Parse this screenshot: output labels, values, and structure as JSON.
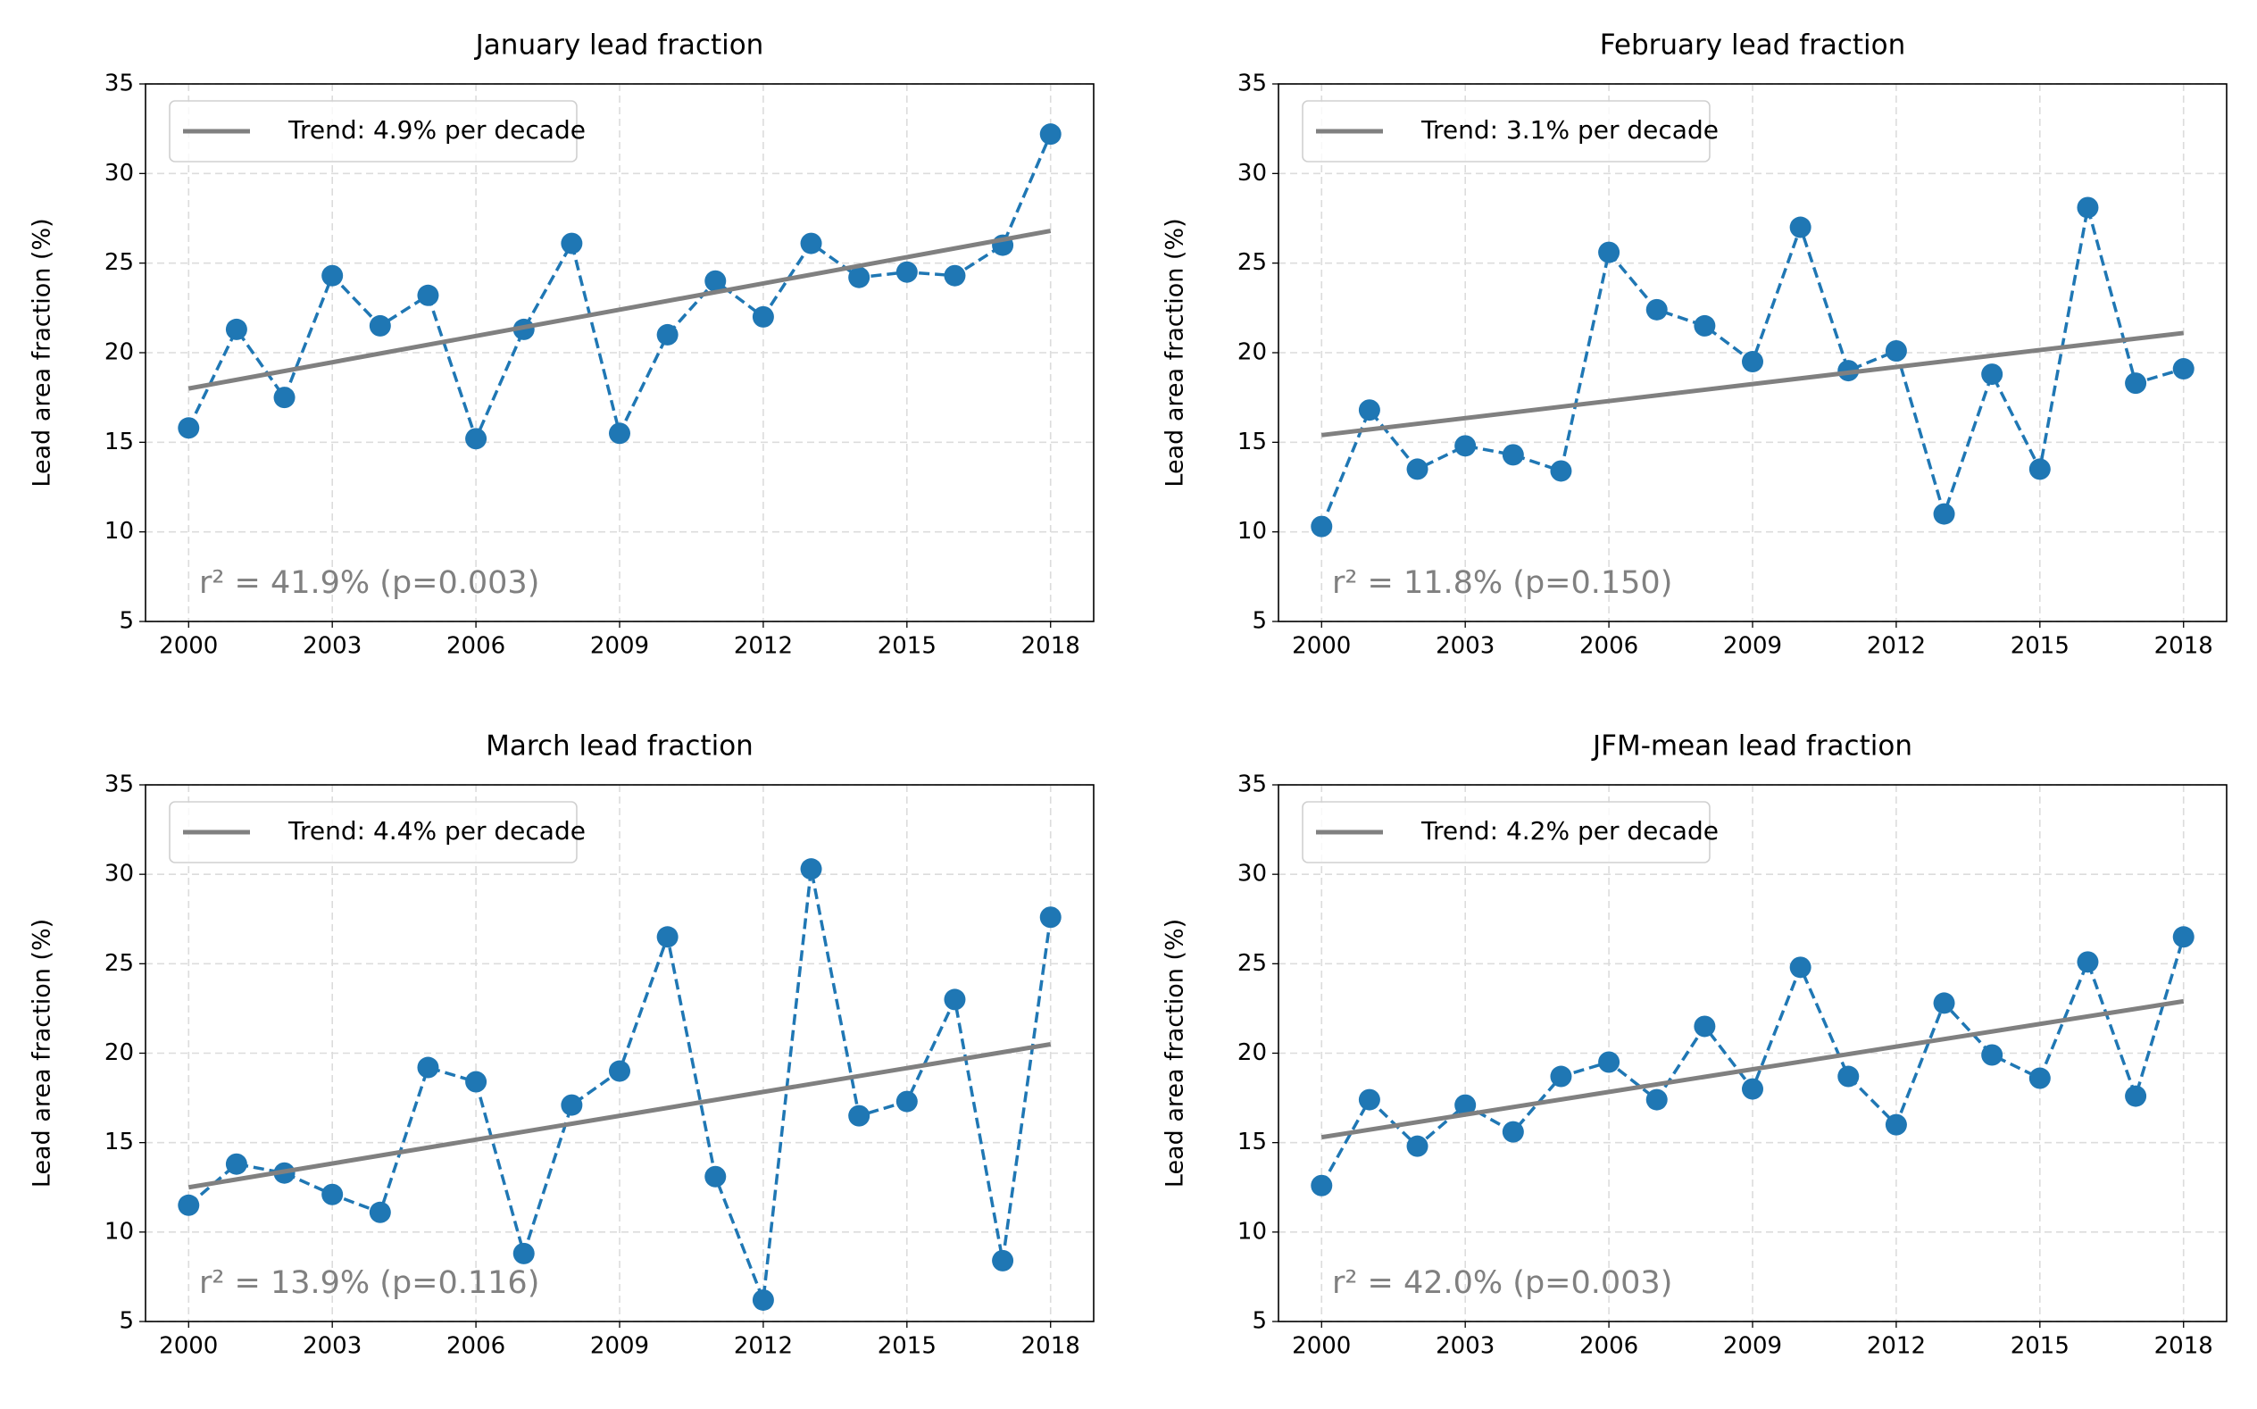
{
  "chart_data": [
    {
      "type": "line",
      "title": "January lead fraction",
      "ylabel": "Lead area fraction (%)",
      "x": [
        2000,
        2001,
        2002,
        2003,
        2004,
        2005,
        2006,
        2007,
        2008,
        2009,
        2010,
        2011,
        2012,
        2013,
        2014,
        2015,
        2016,
        2017,
        2018
      ],
      "series": [
        {
          "color": "#1f77b4",
          "values": [
            15.8,
            21.3,
            17.5,
            24.3,
            21.5,
            23.2,
            15.2,
            21.3,
            26.1,
            15.5,
            21.0,
            24.0,
            22.0,
            26.1,
            24.2,
            24.5,
            24.3,
            26.0,
            32.2
          ]
        },
        {
          "name": "Trend: 4.9% per decade",
          "color": "#808080",
          "x": [
            2000,
            2018
          ],
          "values": [
            18.0,
            26.8
          ]
        }
      ],
      "annotation": "r² = 41.9% (p=0.003)",
      "xlim": [
        1999.1,
        2018.9
      ],
      "xticks": [
        2000,
        2003,
        2006,
        2009,
        2012,
        2015,
        2018
      ],
      "ylim": [
        5,
        35
      ],
      "yticks": [
        5,
        10,
        15,
        20,
        25,
        30,
        35
      ],
      "grid": true,
      "legend": "upper left"
    },
    {
      "type": "line",
      "title": "February lead fraction",
      "ylabel": "Lead area fraction (%)",
      "x": [
        2000,
        2001,
        2002,
        2003,
        2004,
        2005,
        2006,
        2007,
        2008,
        2009,
        2010,
        2011,
        2012,
        2013,
        2014,
        2015,
        2016,
        2017,
        2018
      ],
      "series": [
        {
          "color": "#1f77b4",
          "values": [
            10.3,
            16.8,
            13.5,
            14.8,
            14.3,
            13.4,
            25.6,
            22.4,
            21.5,
            19.5,
            27.0,
            19.0,
            20.1,
            11.0,
            18.8,
            13.5,
            28.1,
            18.3,
            19.1
          ]
        },
        {
          "name": "Trend: 3.1% per decade",
          "color": "#808080",
          "x": [
            2000,
            2018
          ],
          "values": [
            15.4,
            21.1
          ]
        }
      ],
      "annotation": "r² = 11.8% (p=0.150)",
      "xlim": [
        1999.1,
        2018.9
      ],
      "xticks": [
        2000,
        2003,
        2006,
        2009,
        2012,
        2015,
        2018
      ],
      "ylim": [
        5,
        35
      ],
      "yticks": [
        5,
        10,
        15,
        20,
        25,
        30,
        35
      ],
      "grid": true,
      "legend": "upper left"
    },
    {
      "type": "line",
      "title": "March lead fraction",
      "ylabel": "Lead area fraction (%)",
      "x": [
        2000,
        2001,
        2002,
        2003,
        2004,
        2005,
        2006,
        2007,
        2008,
        2009,
        2010,
        2011,
        2012,
        2013,
        2014,
        2015,
        2016,
        2017,
        2018
      ],
      "series": [
        {
          "color": "#1f77b4",
          "values": [
            11.5,
            13.8,
            13.3,
            12.1,
            11.1,
            19.2,
            18.4,
            8.8,
            17.1,
            19.0,
            26.5,
            13.1,
            6.2,
            30.3,
            16.5,
            17.3,
            23.0,
            8.4,
            27.6
          ]
        },
        {
          "name": "Trend: 4.4% per decade",
          "color": "#808080",
          "x": [
            2000,
            2018
          ],
          "values": [
            12.5,
            20.5
          ]
        }
      ],
      "annotation": "r² = 13.9% (p=0.116)",
      "xlim": [
        1999.1,
        2018.9
      ],
      "xticks": [
        2000,
        2003,
        2006,
        2009,
        2012,
        2015,
        2018
      ],
      "ylim": [
        5,
        35
      ],
      "yticks": [
        5,
        10,
        15,
        20,
        25,
        30,
        35
      ],
      "grid": true,
      "legend": "upper left"
    },
    {
      "type": "line",
      "title": "JFM-mean lead fraction",
      "ylabel": "Lead area fraction (%)",
      "x": [
        2000,
        2001,
        2002,
        2003,
        2004,
        2005,
        2006,
        2007,
        2008,
        2009,
        2010,
        2011,
        2012,
        2013,
        2014,
        2015,
        2016,
        2017,
        2018
      ],
      "series": [
        {
          "color": "#1f77b4",
          "values": [
            12.6,
            17.4,
            14.8,
            17.1,
            15.6,
            18.7,
            19.5,
            17.4,
            21.5,
            18.0,
            24.8,
            18.7,
            16.0,
            22.8,
            19.9,
            18.6,
            25.1,
            17.6,
            26.5
          ]
        },
        {
          "name": "Trend: 4.2% per decade",
          "color": "#808080",
          "x": [
            2000,
            2018
          ],
          "values": [
            15.3,
            22.9
          ]
        }
      ],
      "annotation": "r² = 42.0% (p=0.003)",
      "xlim": [
        1999.1,
        2018.9
      ],
      "xticks": [
        2000,
        2003,
        2006,
        2009,
        2012,
        2015,
        2018
      ],
      "ylim": [
        5,
        35
      ],
      "yticks": [
        5,
        10,
        15,
        20,
        25,
        30,
        35
      ],
      "grid": true,
      "legend": "upper left"
    }
  ]
}
